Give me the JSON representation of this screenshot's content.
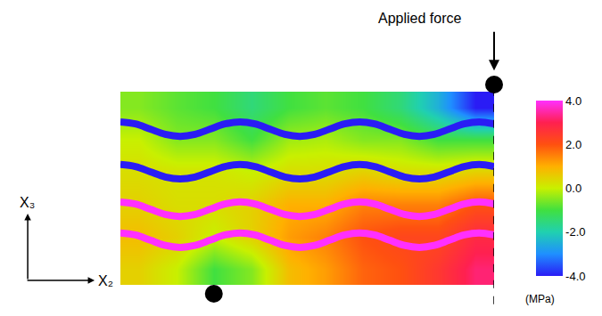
{
  "chart_data": {
    "type": "heatmap",
    "x": [
      5,
      15,
      25,
      35,
      45,
      55,
      65,
      75,
      85,
      95
    ],
    "y": [
      4,
      12,
      20,
      28,
      36,
      44
    ],
    "cells": [
      [
        0.5,
        0.0,
        -1.0,
        -0.5,
        0.8,
        1.2,
        1.8,
        2.0,
        2.5,
        3.2
      ],
      [
        0.8,
        0.5,
        0.0,
        0.5,
        1.2,
        1.5,
        2.0,
        2.2,
        2.2,
        2.8
      ],
      [
        0.5,
        0.3,
        0.3,
        0.5,
        1.0,
        1.0,
        1.5,
        1.5,
        1.5,
        2.0
      ],
      [
        0.3,
        0.2,
        0.2,
        0.0,
        0.3,
        0.3,
        0.5,
        0.3,
        0.3,
        0.5
      ],
      [
        0.0,
        -0.5,
        -0.5,
        -1.0,
        -0.3,
        -0.2,
        -0.5,
        -0.5,
        -1.0,
        -1.0
      ],
      [
        -0.5,
        -0.8,
        -1.0,
        -1.5,
        -1.0,
        -0.8,
        -1.0,
        -1.5,
        -2.5,
        -4.0
      ]
    ],
    "xlim": [
      0,
      100
    ],
    "ylim": [
      0,
      48
    ],
    "tick_labels": false,
    "colorbar": {
      "range": [
        -4,
        4
      ],
      "ticks": [
        {
          "value": 4,
          "label": "4.0"
        },
        {
          "value": 2,
          "label": "2.0"
        },
        {
          "value": 0,
          "label": "0.0"
        },
        {
          "value": -2,
          "label": "-2.0"
        },
        {
          "value": -4,
          "label": "-4.0"
        }
      ],
      "title": "(MPa)"
    },
    "series": [
      {
        "type": "line",
        "stress": -4,
        "x": [
          0,
          4,
          8,
          12,
          16,
          20,
          24,
          28,
          32,
          36,
          40,
          44,
          48,
          52,
          56,
          60,
          64,
          68,
          72,
          76,
          80,
          84,
          88,
          92,
          96,
          100
        ],
        "values": [
          40.5,
          40.0,
          38.7,
          37.4,
          36.9,
          37.4,
          38.7,
          40.0,
          40.5,
          40.0,
          38.7,
          37.4,
          36.9,
          37.4,
          38.7,
          40.0,
          40.5,
          40.0,
          38.7,
          37.4,
          36.9,
          37.4,
          38.7,
          40.0,
          40.5,
          40.0
        ]
      },
      {
        "type": "line",
        "stress": -4,
        "x": [
          0,
          4,
          8,
          12,
          16,
          20,
          24,
          28,
          32,
          36,
          40,
          44,
          48,
          52,
          56,
          60,
          64,
          68,
          72,
          76,
          80,
          84,
          88,
          92,
          96,
          100
        ],
        "values": [
          29.9,
          29.4,
          28.1,
          26.8,
          26.3,
          26.8,
          28.1,
          29.4,
          29.9,
          29.4,
          28.1,
          26.8,
          26.3,
          26.8,
          28.1,
          29.4,
          29.9,
          29.4,
          28.1,
          26.8,
          26.3,
          26.8,
          28.1,
          29.4,
          29.9,
          29.4
        ]
      },
      {
        "type": "line",
        "stress": 4,
        "x": [
          0,
          4,
          8,
          12,
          16,
          20,
          24,
          28,
          32,
          36,
          40,
          44,
          48,
          52,
          56,
          60,
          64,
          68,
          72,
          76,
          80,
          84,
          88,
          92,
          96,
          100
        ],
        "values": [
          20.6,
          20.1,
          18.8,
          17.5,
          17.0,
          17.5,
          18.8,
          20.1,
          20.6,
          20.1,
          18.8,
          17.5,
          17.0,
          17.5,
          18.8,
          20.1,
          20.6,
          20.1,
          18.8,
          17.5,
          17.0,
          17.5,
          18.8,
          20.1,
          20.6,
          20.1
        ]
      },
      {
        "type": "line",
        "stress": 4,
        "x": [
          0,
          4,
          8,
          12,
          16,
          20,
          24,
          28,
          32,
          36,
          40,
          44,
          48,
          52,
          56,
          60,
          64,
          68,
          72,
          76,
          80,
          84,
          88,
          92,
          96,
          100
        ],
        "values": [
          12.9,
          12.4,
          11.1,
          9.8,
          9.3,
          9.8,
          11.1,
          12.4,
          12.9,
          12.4,
          11.1,
          9.8,
          9.3,
          9.8,
          11.1,
          12.4,
          12.9,
          12.4,
          11.1,
          9.8,
          9.3,
          9.8,
          11.1,
          12.4,
          12.9,
          12.4
        ]
      }
    ],
    "annotations": [
      "Applied force"
    ],
    "axis_labels": {
      "x": "X₂",
      "y": "X₃"
    }
  }
}
